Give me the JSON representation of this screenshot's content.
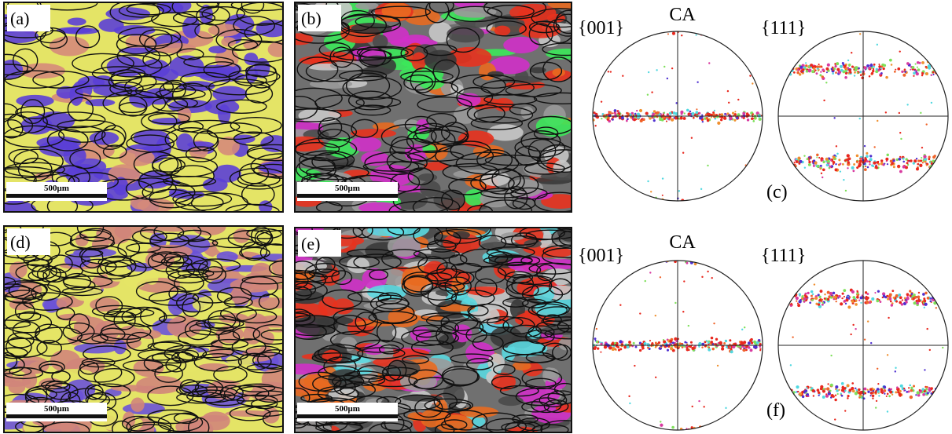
{
  "panels": [
    {
      "label": "(a)",
      "scale_bar": "500μm"
    },
    {
      "label": "(b)",
      "scale_bar": "500μm"
    },
    {
      "label": "(d)",
      "scale_bar": "500μm"
    },
    {
      "label": "(e)",
      "scale_bar": "500μm"
    }
  ],
  "pole_figures": [
    {
      "axis_label": "CA",
      "left_plane": "{001}",
      "right_plane": "{111}",
      "panel_label": "(c)"
    },
    {
      "axis_label": "CA",
      "left_plane": "{001}",
      "right_plane": "{111}",
      "panel_label": "(f)"
    }
  ]
}
